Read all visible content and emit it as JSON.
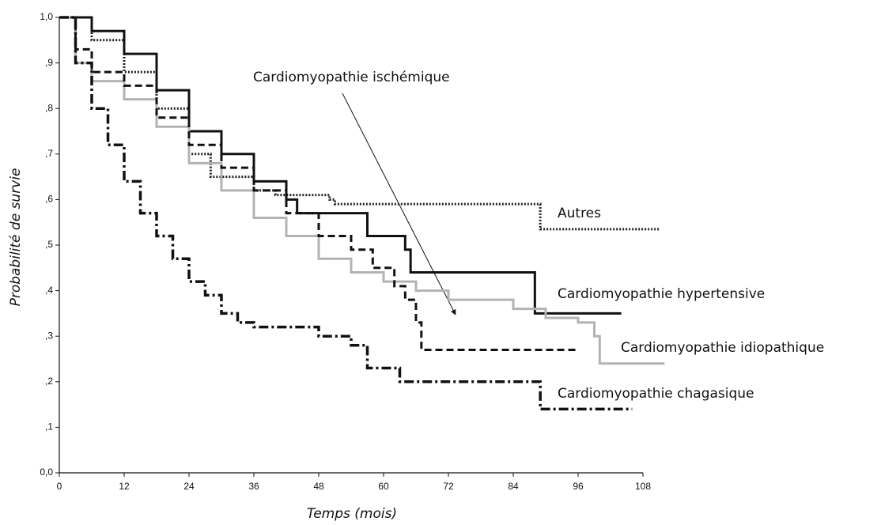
{
  "chart_data": {
    "type": "step",
    "xlabel": "Temps (mois)",
    "ylabel": "Probabilité de survie",
    "xlim": [
      0,
      108
    ],
    "ylim": [
      0,
      1
    ],
    "xticks": [
      0,
      12,
      24,
      36,
      48,
      60,
      72,
      84,
      96,
      108
    ],
    "yticks": [
      {
        "value": 0,
        "label": "0,0"
      },
      {
        "value": 0.1,
        "label": ",1"
      },
      {
        "value": 0.2,
        "label": ",2"
      },
      {
        "value": 0.3,
        "label": ",3"
      },
      {
        "value": 0.4,
        "label": ",4"
      },
      {
        "value": 0.5,
        "label": ",5"
      },
      {
        "value": 0.6,
        "label": ",6"
      },
      {
        "value": 0.7,
        "label": ",7"
      },
      {
        "value": 0.8,
        "label": ",8"
      },
      {
        "value": 0.9,
        "label": ",9"
      },
      {
        "value": 1,
        "label": "1,0"
      }
    ],
    "series": [
      {
        "name": "Autres",
        "color": "#222222",
        "dash": "dotted",
        "x": [
          0,
          6,
          12,
          18,
          24,
          28,
          36,
          40,
          50,
          51,
          88,
          89,
          111
        ],
        "values": [
          1,
          0.95,
          0.88,
          0.8,
          0.7,
          0.65,
          0.62,
          0.61,
          0.6,
          0.59,
          0.59,
          0.535,
          0.535
        ]
      },
      {
        "name": "Cardiomyopathie hypertensive",
        "color": "#111111",
        "dash": "solid",
        "x": [
          0,
          6,
          12,
          18,
          24,
          30,
          36,
          42,
          44,
          54,
          57,
          64,
          65,
          87,
          88,
          104
        ],
        "values": [
          1,
          0.97,
          0.92,
          0.84,
          0.75,
          0.7,
          0.64,
          0.6,
          0.57,
          0.57,
          0.52,
          0.49,
          0.44,
          0.44,
          0.35,
          0.35
        ]
      },
      {
        "name": "Cardiomyopathie idiopathique",
        "color": "#b3b3b3",
        "dash": "solid",
        "x": [
          0,
          3,
          6,
          12,
          18,
          24,
          30,
          36,
          42,
          48,
          54,
          60,
          66,
          72,
          84,
          90,
          96,
          99,
          100,
          112
        ],
        "values": [
          1,
          0.9,
          0.86,
          0.82,
          0.76,
          0.68,
          0.62,
          0.56,
          0.52,
          0.47,
          0.44,
          0.42,
          0.4,
          0.38,
          0.36,
          0.34,
          0.33,
          0.3,
          0.24,
          0.24
        ]
      },
      {
        "name": "Cardiomyopathie chagasique",
        "color": "#111111",
        "dash": "dashdot",
        "x": [
          0,
          3,
          6,
          9,
          12,
          15,
          18,
          21,
          24,
          27,
          30,
          33,
          36,
          42,
          48,
          54,
          57,
          63,
          88,
          89,
          106
        ],
        "values": [
          1,
          0.9,
          0.8,
          0.72,
          0.64,
          0.57,
          0.52,
          0.47,
          0.42,
          0.39,
          0.35,
          0.33,
          0.32,
          0.32,
          0.3,
          0.28,
          0.23,
          0.2,
          0.2,
          0.14,
          0.14
        ]
      },
      {
        "name": "Cardiomyopathie ischémique",
        "color": "#111111",
        "dash": "dashed",
        "x": [
          0,
          3,
          6,
          12,
          18,
          24,
          30,
          36,
          42,
          48,
          54,
          58,
          62,
          64,
          66,
          67,
          96
        ],
        "values": [
          1,
          0.93,
          0.88,
          0.85,
          0.78,
          0.72,
          0.67,
          0.62,
          0.57,
          0.52,
          0.49,
          0.45,
          0.41,
          0.38,
          0.33,
          0.27,
          0.27
        ]
      }
    ]
  }
}
